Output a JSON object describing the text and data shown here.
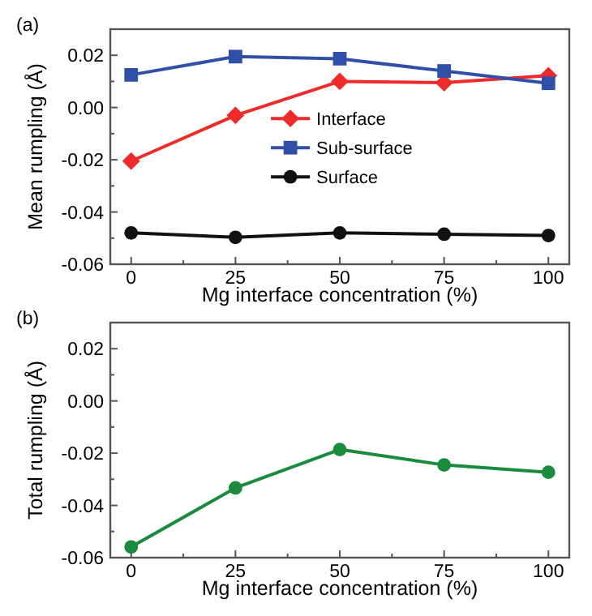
{
  "chart_data": [
    {
      "type": "line",
      "title": "(a)",
      "xlabel": "Mg interface concentration (%)",
      "ylabel": "Mean rumpling (Å)",
      "x": [
        0,
        25,
        50,
        75,
        100
      ],
      "xlim": [
        -5,
        105
      ],
      "xticks": [
        0,
        {
          "value": 12.5,
          "label": null
        },
        25,
        {
          "value": 37.5,
          "label": null
        },
        50,
        {
          "value": 62.5,
          "label": null
        },
        75,
        {
          "value": 87.5,
          "label": null
        },
        100
      ],
      "ylim": [
        -0.06,
        0.03
      ],
      "yticks": [
        {
          "value": -0.06,
          "label": "-0.06"
        },
        {
          "value": -0.05,
          "label": null
        },
        {
          "value": -0.04,
          "label": "-0.04"
        },
        {
          "value": -0.03,
          "label": null
        },
        {
          "value": -0.02,
          "label": "-0.02"
        },
        {
          "value": -0.01,
          "label": null
        },
        {
          "value": 0,
          "label": "0.00"
        },
        {
          "value": 0.01,
          "label": null
        },
        {
          "value": 0.02,
          "label": "0.02"
        }
      ],
      "legend": "center",
      "series": [
        {
          "name": "Interface",
          "color": "#ee2a2a",
          "marker": "diamond",
          "values": [
            -0.0205,
            -0.003,
            0.01,
            0.0095,
            0.0122
          ]
        },
        {
          "name": "Sub-surface",
          "color": "#3050a8",
          "marker": "square",
          "values": [
            0.0125,
            0.0195,
            0.0187,
            0.014,
            0.0093
          ]
        },
        {
          "name": "Surface",
          "color": "#111111",
          "marker": "circle",
          "values": [
            -0.048,
            -0.0497,
            -0.048,
            -0.0485,
            -0.049
          ]
        }
      ]
    },
    {
      "type": "line",
      "title": "(b)",
      "xlabel": "Mg interface concentration (%)",
      "ylabel": "Total rumpling (Å)",
      "x": [
        0,
        25,
        50,
        75,
        100
      ],
      "xlim": [
        -5,
        105
      ],
      "xticks": [
        0,
        {
          "value": 12.5,
          "label": null
        },
        25,
        {
          "value": 37.5,
          "label": null
        },
        50,
        {
          "value": 62.5,
          "label": null
        },
        75,
        {
          "value": 87.5,
          "label": null
        },
        100
      ],
      "ylim": [
        -0.06,
        0.03
      ],
      "yticks": [
        {
          "value": -0.06,
          "label": "-0.06"
        },
        {
          "value": -0.05,
          "label": null
        },
        {
          "value": -0.04,
          "label": "-0.04"
        },
        {
          "value": -0.03,
          "label": null
        },
        {
          "value": -0.02,
          "label": "-0.02"
        },
        {
          "value": -0.01,
          "label": null
        },
        {
          "value": 0,
          "label": "0.00"
        },
        {
          "value": 0.01,
          "label": null
        },
        {
          "value": 0.02,
          "label": "0.02"
        }
      ],
      "series": [
        {
          "color": "#1a8a3c",
          "marker": "circle",
          "values": [
            -0.0559,
            -0.0333,
            -0.0186,
            -0.0245,
            -0.0273
          ]
        }
      ]
    }
  ]
}
